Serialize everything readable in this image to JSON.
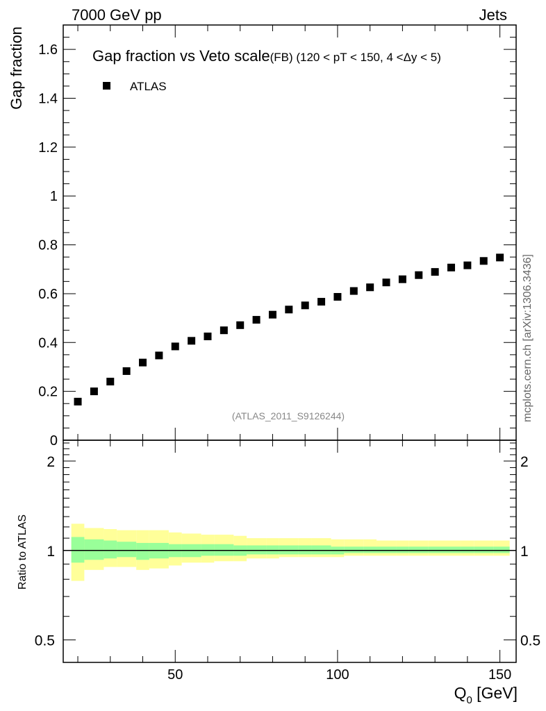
{
  "header": {
    "left": "7000 GeV pp",
    "right": "Jets"
  },
  "side_label": "mcplots.cern.ch [arXiv:1306.3436]",
  "watermark": "(ATLAS_2011_S9126244)",
  "chart_data": [
    {
      "type": "scatter",
      "panel": "main",
      "title_main": "Gap fraction vs Veto scale",
      "title_sub": "(FB) (120 < pT < 150, 4 <Δy < 5)",
      "ylabel": "Gap fraction",
      "ylim": [
        0,
        1.7
      ],
      "xlim": [
        15.5,
        155
      ],
      "y_ticks": [
        {
          "value": 0,
          "label": "0"
        },
        {
          "value": 0.2,
          "label": "0.2"
        },
        {
          "value": 0.4,
          "label": "0.4"
        },
        {
          "value": 0.6,
          "label": "0.6"
        },
        {
          "value": 0.8,
          "label": "0.8"
        },
        {
          "value": 1.0,
          "label": "1"
        },
        {
          "value": 1.2,
          "label": "1.2"
        },
        {
          "value": 1.4,
          "label": "1.4"
        },
        {
          "value": 1.6,
          "label": "1.6"
        }
      ],
      "legend": [
        {
          "name": "ATLAS",
          "marker": "square",
          "color": "#000000"
        }
      ],
      "series": [
        {
          "name": "ATLAS",
          "x": [
            20,
            25,
            30,
            35,
            40,
            45,
            50,
            55,
            60,
            65,
            70,
            75,
            80,
            85,
            90,
            95,
            100,
            105,
            110,
            115,
            120,
            125,
            130,
            135,
            140,
            145,
            150
          ],
          "y": [
            0.158,
            0.2,
            0.24,
            0.283,
            0.318,
            0.347,
            0.384,
            0.407,
            0.425,
            0.45,
            0.471,
            0.493,
            0.514,
            0.535,
            0.552,
            0.567,
            0.587,
            0.611,
            0.626,
            0.646,
            0.659,
            0.676,
            0.689,
            0.707,
            0.716,
            0.734,
            0.748
          ]
        }
      ]
    },
    {
      "type": "area",
      "panel": "ratio",
      "ylabel": "Ratio to ATLAS",
      "xlabel": "Q0 [GeV]",
      "xlabel_main": "Q",
      "xlabel_sub": "0",
      "xlabel_unit": " [GeV]",
      "ylim": [
        0.42,
        2.35
      ],
      "yscale": "log",
      "xlim": [
        15.5,
        155
      ],
      "x_ticks": [
        {
          "value": 50,
          "label": "50"
        },
        {
          "value": 100,
          "label": "100"
        },
        {
          "value": 150,
          "label": "150"
        }
      ],
      "y_ticks": [
        {
          "value": 0.5,
          "label": "0.5"
        },
        {
          "value": 1,
          "label": "1"
        },
        {
          "value": 2,
          "label": "2"
        }
      ],
      "reference_line": 1,
      "bins": [
        {
          "lo": 18,
          "hi": 22,
          "inner": [
            0.91,
            1.11
          ],
          "outer": [
            0.79,
            1.23
          ]
        },
        {
          "lo": 22,
          "hi": 28,
          "inner": [
            0.93,
            1.09
          ],
          "outer": [
            0.86,
            1.19
          ]
        },
        {
          "lo": 28,
          "hi": 32,
          "inner": [
            0.94,
            1.08
          ],
          "outer": [
            0.88,
            1.18
          ]
        },
        {
          "lo": 32,
          "hi": 38,
          "inner": [
            0.95,
            1.07
          ],
          "outer": [
            0.88,
            1.17
          ]
        },
        {
          "lo": 38,
          "hi": 42,
          "inner": [
            0.93,
            1.06
          ],
          "outer": [
            0.86,
            1.17
          ]
        },
        {
          "lo": 42,
          "hi": 48,
          "inner": [
            0.94,
            1.06
          ],
          "outer": [
            0.87,
            1.17
          ]
        },
        {
          "lo": 48,
          "hi": 52,
          "inner": [
            0.95,
            1.05
          ],
          "outer": [
            0.89,
            1.15
          ]
        },
        {
          "lo": 52,
          "hi": 58,
          "inner": [
            0.95,
            1.05
          ],
          "outer": [
            0.91,
            1.14
          ]
        },
        {
          "lo": 58,
          "hi": 62,
          "inner": [
            0.96,
            1.05
          ],
          "outer": [
            0.91,
            1.13
          ]
        },
        {
          "lo": 62,
          "hi": 68,
          "inner": [
            0.96,
            1.05
          ],
          "outer": [
            0.92,
            1.13
          ]
        },
        {
          "lo": 68,
          "hi": 72,
          "inner": [
            0.96,
            1.04
          ],
          "outer": [
            0.92,
            1.12
          ]
        },
        {
          "lo": 72,
          "hi": 78,
          "inner": [
            0.97,
            1.04
          ],
          "outer": [
            0.94,
            1.1
          ]
        },
        {
          "lo": 78,
          "hi": 82,
          "inner": [
            0.97,
            1.04
          ],
          "outer": [
            0.94,
            1.1
          ]
        },
        {
          "lo": 82,
          "hi": 88,
          "inner": [
            0.97,
            1.04
          ],
          "outer": [
            0.95,
            1.1
          ]
        },
        {
          "lo": 88,
          "hi": 92,
          "inner": [
            0.97,
            1.04
          ],
          "outer": [
            0.95,
            1.1
          ]
        },
        {
          "lo": 92,
          "hi": 98,
          "inner": [
            0.97,
            1.04
          ],
          "outer": [
            0.95,
            1.1
          ]
        },
        {
          "lo": 98,
          "hi": 102,
          "inner": [
            0.97,
            1.03
          ],
          "outer": [
            0.95,
            1.09
          ]
        },
        {
          "lo": 102,
          "hi": 108,
          "inner": [
            0.98,
            1.03
          ],
          "outer": [
            0.96,
            1.09
          ]
        },
        {
          "lo": 108,
          "hi": 112,
          "inner": [
            0.98,
            1.03
          ],
          "outer": [
            0.96,
            1.09
          ]
        },
        {
          "lo": 112,
          "hi": 118,
          "inner": [
            0.98,
            1.03
          ],
          "outer": [
            0.96,
            1.08
          ]
        },
        {
          "lo": 118,
          "hi": 122,
          "inner": [
            0.98,
            1.03
          ],
          "outer": [
            0.96,
            1.08
          ]
        },
        {
          "lo": 122,
          "hi": 128,
          "inner": [
            0.98,
            1.03
          ],
          "outer": [
            0.96,
            1.08
          ]
        },
        {
          "lo": 128,
          "hi": 132,
          "inner": [
            0.98,
            1.03
          ],
          "outer": [
            0.96,
            1.08
          ]
        },
        {
          "lo": 132,
          "hi": 138,
          "inner": [
            0.98,
            1.03
          ],
          "outer": [
            0.96,
            1.08
          ]
        },
        {
          "lo": 138,
          "hi": 142,
          "inner": [
            0.98,
            1.03
          ],
          "outer": [
            0.96,
            1.08
          ]
        },
        {
          "lo": 142,
          "hi": 148,
          "inner": [
            0.98,
            1.03
          ],
          "outer": [
            0.96,
            1.08
          ]
        },
        {
          "lo": 148,
          "hi": 153,
          "inner": [
            0.98,
            1.03
          ],
          "outer": [
            0.96,
            1.08
          ]
        }
      ]
    }
  ],
  "colors": {
    "band_outer": "#ffff99",
    "band_inner": "#99ff99",
    "marker": "#000000",
    "watermark": "#888888",
    "side_label": "#666666"
  }
}
